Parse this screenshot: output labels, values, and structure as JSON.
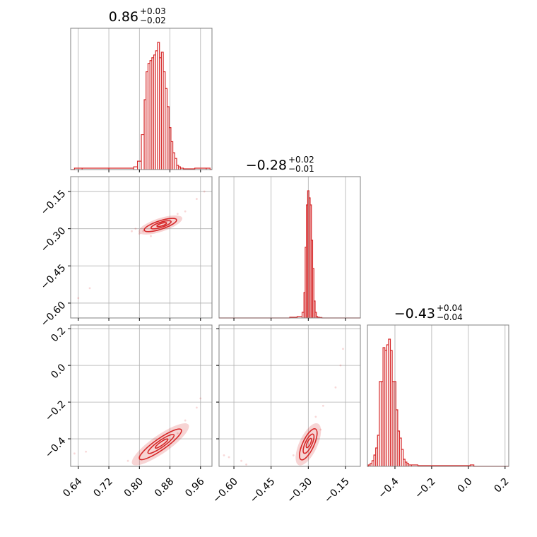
{
  "chart_data": {
    "type": "corner",
    "color": "#d62728",
    "grid": true,
    "parameters": [
      {
        "title": {
          "median": "0.86",
          "plus": "+0.03",
          "minus": "−0.02"
        },
        "range": [
          0.62,
          0.99
        ],
        "ticks": [
          0.64,
          0.72,
          0.8,
          0.88,
          0.96
        ],
        "tick_labels": [
          "0.64",
          "0.72",
          "0.80",
          "0.88",
          "0.96"
        ]
      },
      {
        "title": {
          "median": "−0.28",
          "plus": "+0.02",
          "minus": "−0.01"
        },
        "range": [
          -0.66,
          -0.09
        ],
        "ticks": [
          -0.6,
          -0.45,
          -0.3,
          -0.15
        ],
        "tick_labels": [
          "−0.60",
          "−0.45",
          "−0.30",
          "−0.15"
        ]
      },
      {
        "title": {
          "median": "−0.43",
          "plus": "+0.04",
          "minus": "−0.04"
        },
        "range": [
          -0.55,
          0.22
        ],
        "ticks": [
          -0.4,
          -0.2,
          0.0,
          0.2
        ],
        "tick_labels": [
          "−0.4",
          "−0.2",
          "0.0",
          "0.2"
        ]
      }
    ],
    "histograms": [
      {
        "param": 0,
        "bin_centers": [
          0.64,
          0.66,
          0.78,
          0.79,
          0.8,
          0.81,
          0.815,
          0.82,
          0.825,
          0.83,
          0.835,
          0.84,
          0.845,
          0.85,
          0.855,
          0.86,
          0.865,
          0.87,
          0.875,
          0.88,
          0.885,
          0.89,
          0.895,
          0.9,
          0.905,
          0.91,
          0.92,
          0.97,
          0.98
        ],
        "counts": [
          1,
          1,
          1,
          2,
          6,
          25,
          50,
          70,
          76,
          78,
          80,
          82,
          85,
          91,
          80,
          84,
          70,
          58,
          45,
          30,
          20,
          12,
          8,
          3,
          2,
          1,
          0.5,
          1,
          1
        ]
      },
      {
        "param": 1,
        "bin_centers": [
          -0.36,
          -0.33,
          -0.32,
          -0.315,
          -0.31,
          -0.305,
          -0.3,
          -0.295,
          -0.29,
          -0.285,
          -0.28,
          -0.275,
          -0.27,
          -0.265,
          -0.26,
          -0.25
        ],
        "counts": [
          0.5,
          1,
          4,
          18,
          50,
          80,
          90,
          85,
          80,
          55,
          35,
          12,
          4,
          1,
          0.5,
          0.3
        ]
      },
      {
        "param": 2,
        "bin_centers": [
          -0.54,
          -0.53,
          -0.52,
          -0.51,
          -0.5,
          -0.49,
          -0.48,
          -0.47,
          -0.46,
          -0.45,
          -0.44,
          -0.43,
          -0.42,
          -0.41,
          -0.4,
          -0.39,
          -0.38,
          -0.37,
          -0.36,
          -0.35,
          -0.34,
          -0.33,
          -0.32,
          -0.3,
          -0.25,
          -0.15,
          0.0,
          0.02
        ],
        "counts": [
          1,
          2,
          4,
          8,
          13,
          22,
          60,
          60,
          84,
          82,
          86,
          90,
          82,
          60,
          60,
          40,
          25,
          20,
          12,
          5,
          3,
          2,
          1,
          1,
          0.5,
          0.5,
          0.5,
          1
        ]
      }
    ],
    "pairs": [
      {
        "x_param": 0,
        "y_param": 1,
        "center": [
          0.855,
          -0.285
        ],
        "scatter": [
          [
            0.67,
            -0.54
          ],
          [
            0.64,
            -0.58
          ],
          [
            0.78,
            -0.31
          ],
          [
            0.8,
            -0.32
          ],
          [
            0.79,
            -0.3
          ],
          [
            0.92,
            -0.23
          ],
          [
            0.95,
            -0.18
          ],
          [
            0.97,
            -0.15
          ],
          [
            0.83,
            -0.33
          ],
          [
            0.9,
            -0.24
          ],
          [
            0.87,
            -0.29
          ],
          [
            0.81,
            -0.31
          ]
        ]
      },
      {
        "x_param": 0,
        "y_param": 2,
        "center": [
          0.855,
          -0.43
        ],
        "scatter": [
          [
            0.63,
            -0.48
          ],
          [
            0.66,
            -0.47
          ],
          [
            0.77,
            -0.52
          ],
          [
            0.8,
            -0.5
          ],
          [
            0.92,
            -0.3
          ],
          [
            0.95,
            -0.23
          ],
          [
            0.96,
            -0.18
          ],
          [
            0.86,
            -0.46
          ],
          [
            0.83,
            -0.48
          ],
          [
            0.9,
            -0.37
          ]
        ]
      },
      {
        "x_param": 1,
        "y_param": 2,
        "center": [
          -0.3,
          -0.43
        ],
        "scatter": [
          [
            -0.64,
            -0.49
          ],
          [
            -0.62,
            -0.5
          ],
          [
            -0.57,
            -0.52
          ],
          [
            -0.55,
            -0.54
          ],
          [
            -0.36,
            -0.49
          ],
          [
            -0.33,
            -0.45
          ],
          [
            -0.27,
            -0.28
          ],
          [
            -0.24,
            -0.22
          ],
          [
            -0.19,
            -0.12
          ],
          [
            -0.17,
            0.0
          ],
          [
            -0.16,
            0.09
          ],
          [
            -0.25,
            -0.35
          ]
        ]
      }
    ]
  }
}
